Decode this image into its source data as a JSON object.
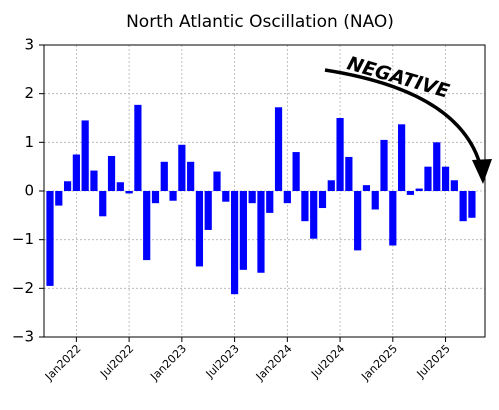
{
  "chart_data": {
    "type": "bar",
    "title": "North Atlantic Oscillation (NAO)",
    "annotation": "NEGATIVE",
    "categories": [
      null,
      null,
      null,
      "Jan2022",
      null,
      null,
      null,
      null,
      null,
      "Jul2022",
      null,
      null,
      null,
      null,
      null,
      "Jan2023",
      null,
      null,
      null,
      null,
      null,
      "Jul2023",
      null,
      null,
      null,
      null,
      null,
      "Jan2024",
      null,
      null,
      null,
      null,
      null,
      "Jul2024",
      null,
      null,
      null,
      null,
      null,
      "Jan2025",
      null,
      null,
      null,
      null,
      null,
      "Jul2025",
      null,
      null,
      null
    ],
    "values": [
      -1.95,
      -0.3,
      0.2,
      0.75,
      1.45,
      0.42,
      -0.52,
      0.72,
      0.18,
      -0.05,
      1.77,
      -1.42,
      -0.25,
      0.6,
      -0.2,
      0.95,
      0.6,
      -1.55,
      -0.8,
      0.4,
      -0.22,
      -2.12,
      -1.62,
      -0.25,
      -1.68,
      -0.45,
      1.72,
      -0.25,
      0.8,
      -0.62,
      -0.98,
      -0.35,
      0.22,
      1.5,
      0.7,
      -1.22,
      0.12,
      -0.38,
      1.05,
      -1.12,
      1.37,
      -0.08,
      0.05,
      0.5,
      1.0,
      0.5,
      0.22,
      -0.62,
      -0.55
    ],
    "color": "#0000ff",
    "ylim": [
      -3,
      3
    ],
    "yticks": [
      {
        "value": -3,
        "label": "−3"
      },
      {
        "value": -2,
        "label": "−2"
      },
      {
        "value": -1,
        "label": "−1"
      },
      0,
      1,
      2,
      3
    ],
    "grid": true
  }
}
